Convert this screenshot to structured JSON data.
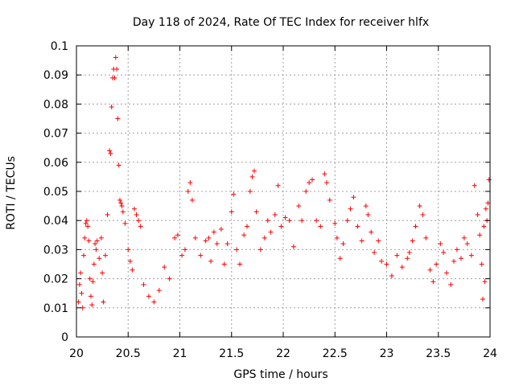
{
  "chart_data": {
    "type": "scatter",
    "title": "Day 118 of 2024, Rate Of TEC Index for receiver hlfx",
    "xlabel": "GPS time / hours",
    "ylabel": "ROTI / TECUs",
    "xlim": [
      20,
      24
    ],
    "ylim": [
      0,
      0.1
    ],
    "x_ticks": [
      20,
      20.5,
      21,
      21.5,
      22,
      22.5,
      23,
      23.5,
      24
    ],
    "x_tick_labels": [
      "20",
      "20.5",
      "21",
      "21.5",
      "22",
      "22.5",
      "23",
      "23.5",
      "24"
    ],
    "y_ticks": [
      0,
      0.01,
      0.02,
      0.03,
      0.04,
      0.05,
      0.06,
      0.07,
      0.08,
      0.09,
      0.1
    ],
    "y_tick_labels": [
      "0",
      "0.01",
      "0.02",
      "0.03",
      "0.04",
      "0.05",
      "0.06",
      "0.07",
      "0.08",
      "0.09",
      "0.1"
    ],
    "grid": true,
    "marker": "+",
    "color": "#ff0000",
    "series": [
      {
        "name": "ROTI",
        "points": [
          [
            20.02,
            0.012
          ],
          [
            20.03,
            0.018
          ],
          [
            20.04,
            0.022
          ],
          [
            20.05,
            0.015
          ],
          [
            20.06,
            0.01
          ],
          [
            20.07,
            0.028
          ],
          [
            20.08,
            0.034
          ],
          [
            20.09,
            0.039
          ],
          [
            20.1,
            0.04
          ],
          [
            20.11,
            0.038
          ],
          [
            20.12,
            0.033
          ],
          [
            20.13,
            0.02
          ],
          [
            20.14,
            0.014
          ],
          [
            20.15,
            0.011
          ],
          [
            20.16,
            0.019
          ],
          [
            20.17,
            0.025
          ],
          [
            20.18,
            0.032
          ],
          [
            20.19,
            0.03
          ],
          [
            20.2,
            0.033
          ],
          [
            20.22,
            0.027
          ],
          [
            20.24,
            0.034
          ],
          [
            20.25,
            0.022
          ],
          [
            20.26,
            0.012
          ],
          [
            20.28,
            0.028
          ],
          [
            20.3,
            0.042
          ],
          [
            20.32,
            0.064
          ],
          [
            20.33,
            0.063
          ],
          [
            20.34,
            0.079
          ],
          [
            20.35,
            0.089
          ],
          [
            20.36,
            0.092
          ],
          [
            20.37,
            0.089
          ],
          [
            20.38,
            0.096
          ],
          [
            20.39,
            0.092
          ],
          [
            20.4,
            0.075
          ],
          [
            20.41,
            0.059
          ],
          [
            20.42,
            0.047
          ],
          [
            20.43,
            0.046
          ],
          [
            20.44,
            0.045
          ],
          [
            20.45,
            0.043
          ],
          [
            20.47,
            0.039
          ],
          [
            20.5,
            0.03
          ],
          [
            20.52,
            0.026
          ],
          [
            20.54,
            0.023
          ],
          [
            20.56,
            0.044
          ],
          [
            20.58,
            0.042
          ],
          [
            20.6,
            0.04
          ],
          [
            20.62,
            0.038
          ],
          [
            20.65,
            0.018
          ],
          [
            20.7,
            0.014
          ],
          [
            20.75,
            0.012
          ],
          [
            20.8,
            0.016
          ],
          [
            20.85,
            0.024
          ],
          [
            20.9,
            0.02
          ],
          [
            20.95,
            0.034
          ],
          [
            20.98,
            0.035
          ],
          [
            21.02,
            0.028
          ],
          [
            21.05,
            0.03
          ],
          [
            21.08,
            0.05
          ],
          [
            21.1,
            0.053
          ],
          [
            21.12,
            0.047
          ],
          [
            21.15,
            0.034
          ],
          [
            21.2,
            0.028
          ],
          [
            21.25,
            0.033
          ],
          [
            21.28,
            0.034
          ],
          [
            21.3,
            0.026
          ],
          [
            21.33,
            0.036
          ],
          [
            21.36,
            0.032
          ],
          [
            21.4,
            0.037
          ],
          [
            21.43,
            0.025
          ],
          [
            21.46,
            0.032
          ],
          [
            21.5,
            0.043
          ],
          [
            21.52,
            0.049
          ],
          [
            21.55,
            0.03
          ],
          [
            21.58,
            0.025
          ],
          [
            21.62,
            0.035
          ],
          [
            21.65,
            0.038
          ],
          [
            21.68,
            0.05
          ],
          [
            21.7,
            0.055
          ],
          [
            21.72,
            0.057
          ],
          [
            21.74,
            0.043
          ],
          [
            21.78,
            0.03
          ],
          [
            21.82,
            0.034
          ],
          [
            21.85,
            0.04
          ],
          [
            21.88,
            0.036
          ],
          [
            21.92,
            0.042
          ],
          [
            21.95,
            0.052
          ],
          [
            21.98,
            0.038
          ],
          [
            22.02,
            0.041
          ],
          [
            22.06,
            0.04
          ],
          [
            22.1,
            0.031
          ],
          [
            22.15,
            0.045
          ],
          [
            22.18,
            0.04
          ],
          [
            22.22,
            0.05
          ],
          [
            22.25,
            0.053
          ],
          [
            22.28,
            0.054
          ],
          [
            22.32,
            0.04
          ],
          [
            22.36,
            0.038
          ],
          [
            22.4,
            0.056
          ],
          [
            22.42,
            0.053
          ],
          [
            22.45,
            0.047
          ],
          [
            22.5,
            0.039
          ],
          [
            22.52,
            0.034
          ],
          [
            22.55,
            0.027
          ],
          [
            22.58,
            0.032
          ],
          [
            22.62,
            0.04
          ],
          [
            22.65,
            0.044
          ],
          [
            22.68,
            0.048
          ],
          [
            22.72,
            0.038
          ],
          [
            22.76,
            0.033
          ],
          [
            22.8,
            0.045
          ],
          [
            22.82,
            0.042
          ],
          [
            22.85,
            0.036
          ],
          [
            22.88,
            0.029
          ],
          [
            22.92,
            0.033
          ],
          [
            22.95,
            0.026
          ],
          [
            23.0,
            0.025
          ],
          [
            23.05,
            0.021
          ],
          [
            23.1,
            0.028
          ],
          [
            23.15,
            0.024
          ],
          [
            23.2,
            0.027
          ],
          [
            23.22,
            0.029
          ],
          [
            23.25,
            0.033
          ],
          [
            23.28,
            0.038
          ],
          [
            23.32,
            0.045
          ],
          [
            23.35,
            0.042
          ],
          [
            23.38,
            0.034
          ],
          [
            23.42,
            0.023
          ],
          [
            23.45,
            0.019
          ],
          [
            23.48,
            0.025
          ],
          [
            23.52,
            0.032
          ],
          [
            23.55,
            0.029
          ],
          [
            23.58,
            0.022
          ],
          [
            23.62,
            0.018
          ],
          [
            23.65,
            0.026
          ],
          [
            23.68,
            0.03
          ],
          [
            23.72,
            0.027
          ],
          [
            23.75,
            0.034
          ],
          [
            23.78,
            0.032
          ],
          [
            23.82,
            0.028
          ],
          [
            23.85,
            0.052
          ],
          [
            23.88,
            0.042
          ],
          [
            23.9,
            0.035
          ],
          [
            23.92,
            0.025
          ],
          [
            23.94,
            0.038
          ],
          [
            23.96,
            0.044
          ],
          [
            23.98,
            0.046
          ],
          [
            23.99,
            0.054
          ],
          [
            23.97,
            0.04
          ],
          [
            23.95,
            0.019
          ],
          [
            23.93,
            0.013
          ]
        ]
      }
    ]
  }
}
